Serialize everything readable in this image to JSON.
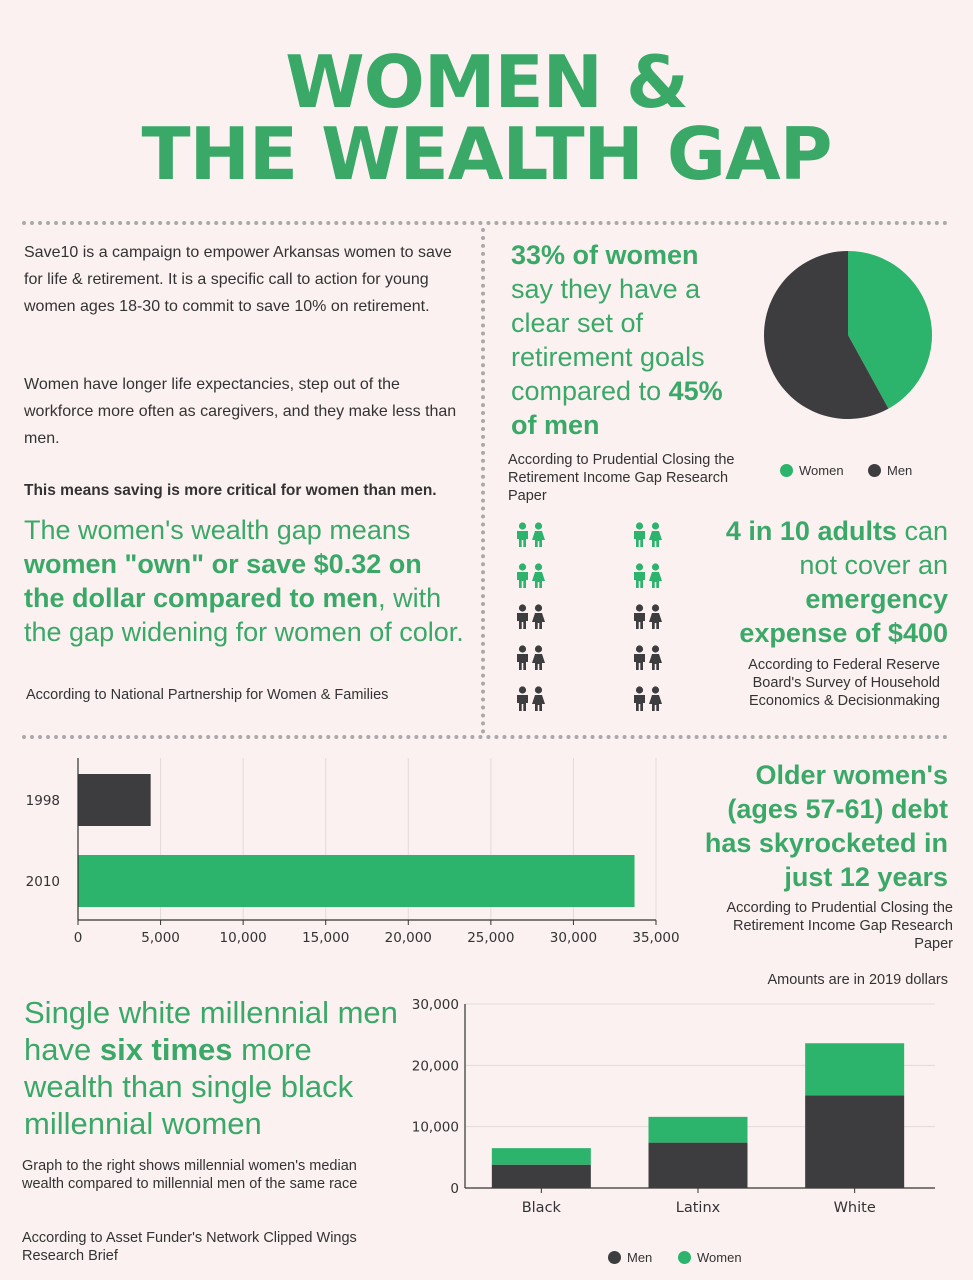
{
  "header": {
    "title_line1": "WOMEN &",
    "title_line2": "THE WEALTH GAP"
  },
  "intro": {
    "p1": "Save10 is a campaign to empower Arkansas women to save for life & retirement. It is a specific call to action for young women ages 18-30 to commit to save 10% on retirement.",
    "p2": "Women have longer life expectancies, step out of the workforce more often as caregivers, and they make less than men.",
    "p3": "This means saving is more critical for women than men."
  },
  "wealth_gap": {
    "t1": "The women's wealth gap means ",
    "t2": "women \"own\" or save $0.32 on the dollar compared to men",
    "t3": ", with the gap widening for women of color.",
    "source": "According to National Partnership for Women & Families"
  },
  "goals": {
    "t1": "33% of women",
    "t2": " say they have a clear set of retirement goals compared to ",
    "t3": "45% of men",
    "source": "According to Prudential Closing the Retirement Income Gap Research Paper"
  },
  "emergency": {
    "t1": "4 in 10 adults",
    "t2": " can not cover an ",
    "t3": "emergency expense of $400",
    "source": "According to Federal Reserve Board's Survey of Household Economics & Decisionmaking",
    "icons_green": 4,
    "icons_total": 10
  },
  "colors": {
    "green": "#2db46c",
    "dark": "#3d3d40",
    "title_green": "#3aa968"
  },
  "debt": {
    "headline": "Older women's (ages 57-61) debt has skyrocketed in just 12 years",
    "source": "According to Prudential Closing the Retirement Income Gap Research Paper",
    "note": "Amounts are in 2019 dollars"
  },
  "millennial": {
    "t1": "Single white millennial men have ",
    "t2": "six times",
    "t3": " more wealth than single black millennial women",
    "desc": "Graph to the right shows millennial women's median wealth compared to millennial men of the same race",
    "source": "According to Asset Funder's Network Clipped Wings Research Brief"
  },
  "chart_data": [
    {
      "type": "pie",
      "labels": [
        "Women",
        "Men"
      ],
      "values": [
        42,
        58
      ],
      "colors": [
        "#2db46c",
        "#3d3d40"
      ],
      "legend": "bottom"
    },
    {
      "type": "bar",
      "orientation": "horizontal",
      "categories": [
        "1998",
        "2010"
      ],
      "values": [
        4400,
        33700
      ],
      "colors": [
        "#3d3d40",
        "#2db46c"
      ],
      "xlim": [
        0,
        35000
      ],
      "xticks": [
        "0",
        "5,000",
        "10,000",
        "15,000",
        "20,000",
        "25,000",
        "30,000",
        "35,000"
      ],
      "grid": true
    },
    {
      "type": "bar",
      "stacked": true,
      "categories": [
        "Black",
        "Latinx",
        "White"
      ],
      "series": [
        {
          "name": "Men",
          "values": [
            3800,
            7400,
            15100
          ],
          "color": "#3d3d40"
        },
        {
          "name": "Women",
          "values": [
            2700,
            4200,
            8500
          ],
          "color": "#2db46c"
        }
      ],
      "ylim": [
        0,
        30000
      ],
      "yticks": [
        "0",
        "10,000",
        "20,000",
        "30,000"
      ],
      "legend": "bottom",
      "grid": true
    }
  ]
}
